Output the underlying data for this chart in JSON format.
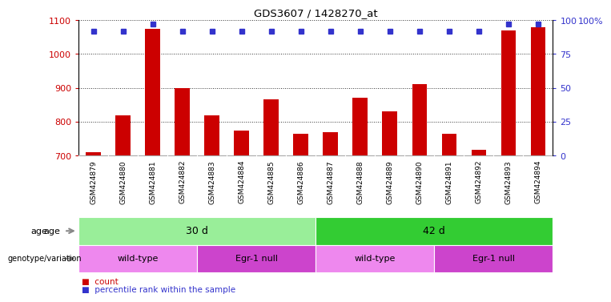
{
  "title": "GDS3607 / 1428270_at",
  "samples": [
    "GSM424879",
    "GSM424880",
    "GSM424881",
    "GSM424882",
    "GSM424883",
    "GSM424884",
    "GSM424885",
    "GSM424886",
    "GSM424887",
    "GSM424888",
    "GSM424889",
    "GSM424890",
    "GSM424891",
    "GSM424892",
    "GSM424893",
    "GSM424894"
  ],
  "counts": [
    710,
    820,
    1075,
    900,
    820,
    775,
    865,
    765,
    768,
    870,
    830,
    910,
    765,
    718,
    1070,
    1080
  ],
  "percentile_ranks": [
    92,
    92,
    97,
    92,
    92,
    92,
    92,
    92,
    92,
    92,
    92,
    92,
    92,
    92,
    97,
    97
  ],
  "ylim_left": [
    700,
    1100
  ],
  "ylim_right": [
    0,
    100
  ],
  "yticks_left": [
    700,
    800,
    900,
    1000,
    1100
  ],
  "yticks_right": [
    0,
    25,
    50,
    75,
    100
  ],
  "bar_color": "#cc0000",
  "dot_color": "#3333cc",
  "bar_width": 0.5,
  "age_groups": [
    {
      "text": "30 d",
      "start": 0,
      "end": 7,
      "color": "#99ee99"
    },
    {
      "text": "42 d",
      "start": 8,
      "end": 15,
      "color": "#33cc33"
    }
  ],
  "genotype_groups": [
    {
      "text": "wild-type",
      "start": 0,
      "end": 3,
      "color": "#ee88ee"
    },
    {
      "text": "Egr-1 null",
      "start": 4,
      "end": 7,
      "color": "#cc44cc"
    },
    {
      "text": "wild-type",
      "start": 8,
      "end": 11,
      "color": "#ee88ee"
    },
    {
      "text": "Egr-1 null",
      "start": 12,
      "end": 15,
      "color": "#cc44cc"
    }
  ],
  "legend_count_color": "#cc0000",
  "legend_percentile_color": "#3333cc",
  "background_color": "#ffffff",
  "grid_color": "#333333",
  "tick_label_gray": "#d0d0d0",
  "row_header_age": "age",
  "row_header_genotype": "genotype/variation",
  "right_axis_label": "100%"
}
